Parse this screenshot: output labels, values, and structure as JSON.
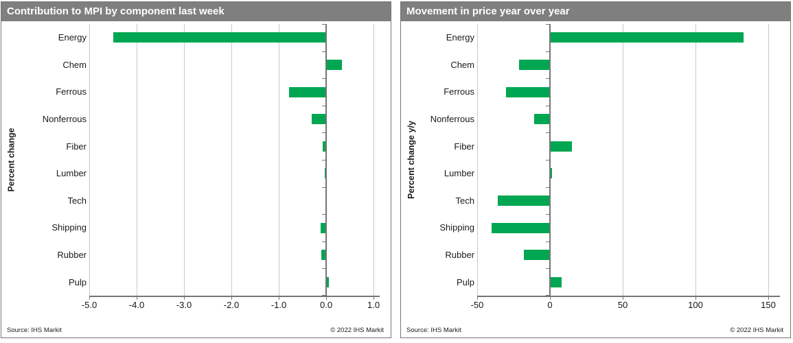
{
  "colors": {
    "bar_green": "#00A651",
    "title_bar_bg": "#7F7F7F",
    "title_text": "#FFFFFF",
    "gridline": "#C9C9C9",
    "axis_line": "#747474"
  },
  "chart_data": [
    {
      "type": "bar",
      "orientation": "horizontal",
      "title": "Contribution to MPI by component last week",
      "ylabel": "Percent change",
      "categories": [
        "Energy",
        "Chem",
        "Ferrous",
        "Nonferrous",
        "Fiber",
        "Lumber",
        "Tech",
        "Shipping",
        "Rubber",
        "Pulp"
      ],
      "values": [
        -4.5,
        0.33,
        -0.78,
        -0.3,
        -0.07,
        -0.03,
        0,
        -0.12,
        -0.1,
        0.06
      ],
      "x_ticks": [
        -5,
        -4,
        -3,
        -2,
        -1,
        0,
        1
      ],
      "x_tick_labels": [
        "-5.0",
        "-4.0",
        "-3.0",
        "-2.0",
        "-1.0",
        "0.0",
        "1.0"
      ],
      "xlim": [
        -5,
        1.13
      ],
      "grid": "vertical",
      "legend": "none",
      "bar_color": "#00A651",
      "source": "Source:  IHS Markit",
      "copyright": "© 2022  IHS Markit"
    },
    {
      "type": "bar",
      "orientation": "horizontal",
      "title": "Movement in price year over year",
      "ylabel": "Percent change y/y",
      "categories": [
        "Energy",
        "Chem",
        "Ferrous",
        "Nonferrous",
        "Fiber",
        "Lumber",
        "Tech",
        "Shipping",
        "Rubber",
        "Pulp"
      ],
      "values": [
        133,
        -21,
        -30,
        -11,
        15,
        1.5,
        -36,
        -40,
        -18,
        8
      ],
      "x_ticks": [
        -50,
        0,
        50,
        100,
        150
      ],
      "x_tick_labels": [
        "-50",
        "0",
        "50",
        "100",
        "150"
      ],
      "xlim": [
        -50,
        158
      ],
      "grid": "vertical",
      "legend": "none",
      "bar_color": "#00A651",
      "source": "Source:  IHS Markit",
      "copyright": "© 2022  IHS Markit"
    }
  ]
}
